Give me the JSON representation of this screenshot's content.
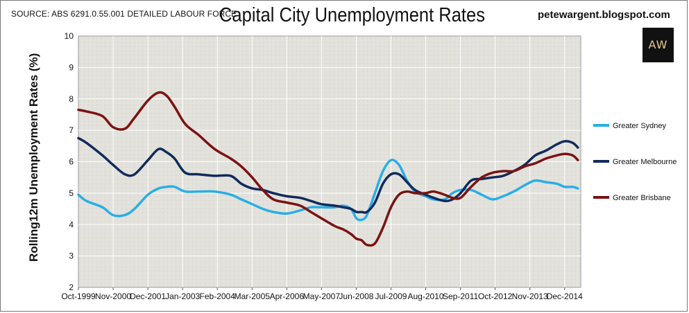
{
  "header": {
    "source": "SOURCE: ABS 6291.0.55.001 DETAILED LABOUR FORCE",
    "title": "Capital City Unemployment Rates",
    "blog": "petewargent.blogspot.com",
    "logo_text": "AW"
  },
  "colors": {
    "plot_background": "#e2e1db",
    "grid": "#ffffff",
    "sydney": "#29aee6",
    "melbourne": "#112a5c",
    "brisbane": "#7b1212"
  },
  "chart_data": {
    "type": "line",
    "ylabel": "Rolling12m Unemployment Rates (%)",
    "xlabel": "",
    "ylim": [
      2,
      10
    ],
    "yticks": [
      "2",
      "3",
      "4",
      "5",
      "6",
      "7",
      "8",
      "9",
      "10"
    ],
    "xticks": [
      "Oct-1999",
      "Nov-2000",
      "Dec-2001",
      "Jan-2003",
      "Feb-2004",
      "Mar-2005",
      "Apr-2006",
      "May-2007",
      "Jun-2008",
      "Jul-2009",
      "Aug-2010",
      "Sep-2011",
      "Oct-2012",
      "Nov-2013",
      "Dec-2014"
    ],
    "x": [
      1999.75,
      2000.0,
      2000.5,
      2000.83,
      2001.2,
      2001.5,
      2001.92,
      2002.25,
      2002.5,
      2002.75,
      2003.08,
      2003.5,
      2004.0,
      2004.5,
      2004.83,
      2005.17,
      2005.5,
      2005.83,
      2006.25,
      2006.67,
      2007.0,
      2007.33,
      2007.75,
      2008.0,
      2008.25,
      2008.42,
      2008.58,
      2008.75,
      2009.0,
      2009.25,
      2009.5,
      2009.75,
      2010.0,
      2010.25,
      2010.58,
      2010.83,
      2011.17,
      2011.42,
      2011.67,
      2012.0,
      2012.33,
      2012.67,
      2013.0,
      2013.33,
      2013.67,
      2014.0,
      2014.33,
      2014.67,
      2014.92,
      2015.17,
      2015.33
    ],
    "legend_position": "right",
    "grid": true,
    "series": [
      {
        "name": "Greater Sydney",
        "color": "#29aee6",
        "values": [
          4.95,
          4.75,
          4.55,
          4.3,
          4.3,
          4.5,
          4.95,
          5.15,
          5.2,
          5.2,
          5.05,
          5.05,
          5.05,
          4.95,
          4.8,
          4.65,
          4.5,
          4.4,
          4.35,
          4.45,
          4.55,
          4.55,
          4.55,
          4.6,
          4.5,
          4.2,
          4.15,
          4.3,
          5.0,
          5.7,
          6.05,
          5.9,
          5.4,
          5.05,
          4.9,
          4.8,
          4.8,
          5.0,
          5.1,
          5.1,
          4.95,
          4.8,
          4.9,
          5.05,
          5.25,
          5.4,
          5.35,
          5.3,
          5.2,
          5.2,
          5.15
        ]
      },
      {
        "name": "Greater Melbourne",
        "color": "#112a5c",
        "values": [
          6.75,
          6.6,
          6.2,
          5.9,
          5.6,
          5.6,
          6.05,
          6.4,
          6.3,
          6.1,
          5.65,
          5.6,
          5.55,
          5.55,
          5.3,
          5.15,
          5.1,
          5.0,
          4.9,
          4.85,
          4.75,
          4.65,
          4.6,
          4.55,
          4.5,
          4.4,
          4.4,
          4.4,
          4.7,
          5.3,
          5.6,
          5.6,
          5.35,
          5.1,
          4.95,
          4.85,
          4.75,
          4.8,
          5.0,
          5.4,
          5.45,
          5.5,
          5.55,
          5.7,
          5.9,
          6.2,
          6.35,
          6.55,
          6.65,
          6.6,
          6.45
        ]
      },
      {
        "name": "Greater Brisbane",
        "color": "#7b1212",
        "values": [
          7.65,
          7.6,
          7.45,
          7.1,
          7.05,
          7.4,
          7.95,
          8.2,
          8.1,
          7.75,
          7.2,
          6.85,
          6.4,
          6.1,
          5.85,
          5.5,
          5.1,
          4.8,
          4.7,
          4.6,
          4.4,
          4.2,
          3.95,
          3.85,
          3.7,
          3.55,
          3.5,
          3.35,
          3.4,
          3.9,
          4.55,
          4.95,
          5.05,
          5.0,
          5.0,
          5.05,
          4.95,
          4.85,
          4.85,
          5.2,
          5.5,
          5.65,
          5.7,
          5.7,
          5.85,
          5.95,
          6.1,
          6.2,
          6.25,
          6.2,
          6.05
        ]
      }
    ]
  }
}
